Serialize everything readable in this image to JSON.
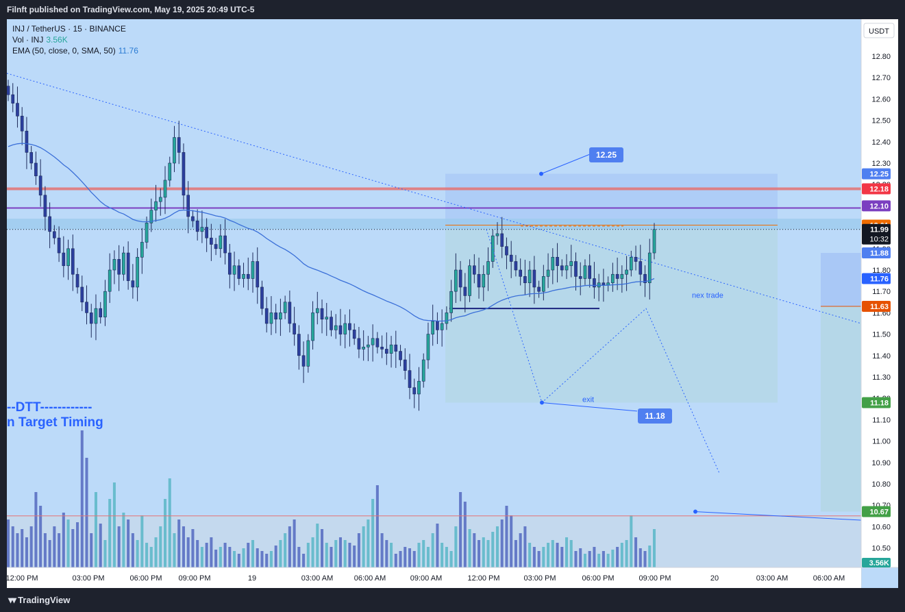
{
  "header": {
    "published": "Filnft published on TradingView.com, May 19, 2025 20:49 UTC-5"
  },
  "footer": {
    "brand": "TradingView"
  },
  "legend": {
    "symbol": "INJ / TetherUS · 15 · BINANCE",
    "vol_label": "Vol · INJ",
    "vol_value": "3.56K",
    "ema_label": "EMA (50, close, 0, SMA, 50)",
    "ema_value": "11.76"
  },
  "annotations": {
    "dtt_line1": "--DTT------------",
    "dtt_line2": "n Target Timing",
    "target_label": "12.25",
    "exit_label": "11.18",
    "exit_text": "exit",
    "next_trade_text": "nex trade"
  },
  "colors": {
    "bg": "#bcdaf9",
    "up": "#26a69a",
    "down": "#2c3f9e",
    "ema": "#3a6fd8",
    "red_line": "#e57373",
    "purple_line": "#7b3fc0",
    "axis_bg": "#ffffff"
  },
  "chart_data": {
    "type": "candlestick",
    "symbol": "INJ / TetherUS",
    "interval": "15",
    "exchange": "BINANCE",
    "currency": "USDT",
    "y_ticks": [
      "12.80",
      "12.70",
      "12.60",
      "12.50",
      "12.40",
      "12.30",
      "12.20",
      "12.10",
      "12.00",
      "11.90",
      "11.80",
      "11.70",
      "11.60",
      "11.50",
      "11.40",
      "11.30",
      "11.20",
      "11.10",
      "11.00",
      "10.90",
      "10.80",
      "10.70",
      "10.60",
      "10.50"
    ],
    "x_ticks": [
      "12:00 PM",
      "03:00 PM",
      "06:00 PM",
      "09:00 PM",
      "19",
      "03:00 AM",
      "06:00 AM",
      "09:00 AM",
      "12:00 PM",
      "03:00 PM",
      "06:00 PM",
      "09:00 PM",
      "20",
      "03:00 AM",
      "06:00 AM"
    ],
    "price_labels": [
      {
        "text": "12.25",
        "value": 12.25,
        "color": "#4f7ff0"
      },
      {
        "text": "12.18",
        "value": 12.18,
        "color": "#f23645"
      },
      {
        "text": "12.10",
        "value": 12.1,
        "color": "#7b3fc0"
      },
      {
        "text": "12.01",
        "value": 12.01,
        "color": "#ef6c00"
      },
      {
        "text": "11.99",
        "value": 11.99,
        "color": "#131722"
      },
      {
        "text": "11.88",
        "value": 11.88,
        "color": "#4f7ff0"
      },
      {
        "text": "11.76",
        "value": 11.76,
        "color": "#2962ff"
      },
      {
        "text": "11.63",
        "value": 11.63,
        "color": "#e65100"
      },
      {
        "text": "11.18",
        "value": 11.18,
        "color": "#43a047"
      },
      {
        "text": "10.67",
        "value": 10.67,
        "color": "#43a047"
      }
    ],
    "countdown": "10:32",
    "volume_badge": "3.56K",
    "last_price": 11.99,
    "ema_last": 11.76,
    "closes": [
      12.62,
      12.58,
      12.52,
      12.45,
      12.35,
      12.3,
      12.24,
      12.15,
      12.05,
      11.98,
      11.95,
      11.88,
      11.82,
      11.9,
      11.78,
      11.72,
      11.65,
      11.6,
      11.55,
      11.62,
      11.58,
      11.7,
      11.8,
      11.85,
      11.78,
      11.88,
      11.75,
      11.72,
      11.86,
      11.93,
      12.02,
      12.08,
      12.12,
      12.14,
      12.22,
      12.3,
      12.42,
      12.35,
      12.15,
      12.05,
      12.03,
      11.98,
      12.0,
      11.95,
      11.92,
      11.9,
      11.96,
      11.88,
      11.78,
      11.82,
      11.76,
      11.78,
      11.76,
      11.84,
      11.72,
      11.62,
      11.55,
      11.6,
      11.57,
      11.6,
      11.65,
      11.55,
      11.5,
      11.4,
      11.35,
      11.47,
      11.6,
      11.62,
      11.57,
      11.58,
      11.52,
      11.54,
      11.5,
      11.55,
      11.52,
      11.48,
      11.43,
      11.44,
      11.45,
      11.48,
      11.44,
      11.43,
      11.41,
      11.45,
      11.42,
      11.38,
      11.33,
      11.25,
      11.22,
      11.28,
      11.38,
      11.5,
      11.56,
      11.52,
      11.55,
      11.6,
      11.7,
      11.8,
      11.72,
      11.68,
      11.82,
      11.78,
      11.72,
      11.78,
      11.84,
      11.96,
      11.97,
      11.91,
      11.87,
      11.84,
      11.8,
      11.77,
      11.74,
      11.8,
      11.72,
      11.7,
      11.77,
      11.8,
      11.86,
      11.82,
      11.8,
      11.82,
      11.84,
      11.77,
      11.76,
      11.82,
      11.76,
      11.72,
      11.74,
      11.73,
      11.74,
      11.78,
      11.76,
      11.78,
      11.8,
      11.86,
      11.84,
      11.78,
      11.74,
      11.88,
      11.99
    ],
    "volume_rel": [
      0.35,
      0.3,
      0.25,
      0.28,
      0.22,
      0.3,
      0.55,
      0.45,
      0.25,
      0.2,
      0.3,
      0.25,
      0.4,
      0.35,
      0.28,
      0.33,
      0.6,
      0.72,
      0.25,
      0.55,
      0.32,
      0.2,
      0.5,
      0.62,
      0.3,
      0.4,
      0.35,
      0.25,
      0.2,
      0.38,
      0.18,
      0.15,
      0.22,
      0.3,
      0.5,
      0.65,
      0.25,
      0.35,
      0.3,
      0.22,
      0.28,
      0.2,
      0.15,
      0.18,
      0.22,
      0.13,
      0.15,
      0.18,
      0.15,
      0.12,
      0.1,
      0.14,
      0.18,
      0.2,
      0.14,
      0.12,
      0.1,
      0.12,
      0.16,
      0.2,
      0.25,
      0.3,
      0.35,
      0.15,
      0.1,
      0.18,
      0.22,
      0.32,
      0.28,
      0.18,
      0.15,
      0.2,
      0.22,
      0.2,
      0.18,
      0.16,
      0.25,
      0.3,
      0.35,
      0.5,
      0.6,
      0.25,
      0.2,
      0.18,
      0.1,
      0.12,
      0.15,
      0.14,
      0.12,
      0.18,
      0.2,
      0.15,
      0.25,
      0.32,
      0.18,
      0.15,
      0.12,
      0.3,
      0.55,
      0.48,
      0.28,
      0.25,
      0.2,
      0.22,
      0.2,
      0.26,
      0.3,
      0.35,
      0.45,
      0.38,
      0.2,
      0.25,
      0.3,
      0.18,
      0.15,
      0.12,
      0.15,
      0.18,
      0.2,
      0.18,
      0.15,
      0.22,
      0.2,
      0.12,
      0.14,
      0.1,
      0.12,
      0.15,
      0.1,
      0.12,
      0.1,
      0.13,
      0.15,
      0.18,
      0.2,
      0.38,
      0.22,
      0.14,
      0.12,
      0.16,
      0.28
    ],
    "volume_extra_spikes": [
      {
        "i": 16,
        "v": 1.0
      },
      {
        "i": 17,
        "v": 0.8
      }
    ]
  }
}
